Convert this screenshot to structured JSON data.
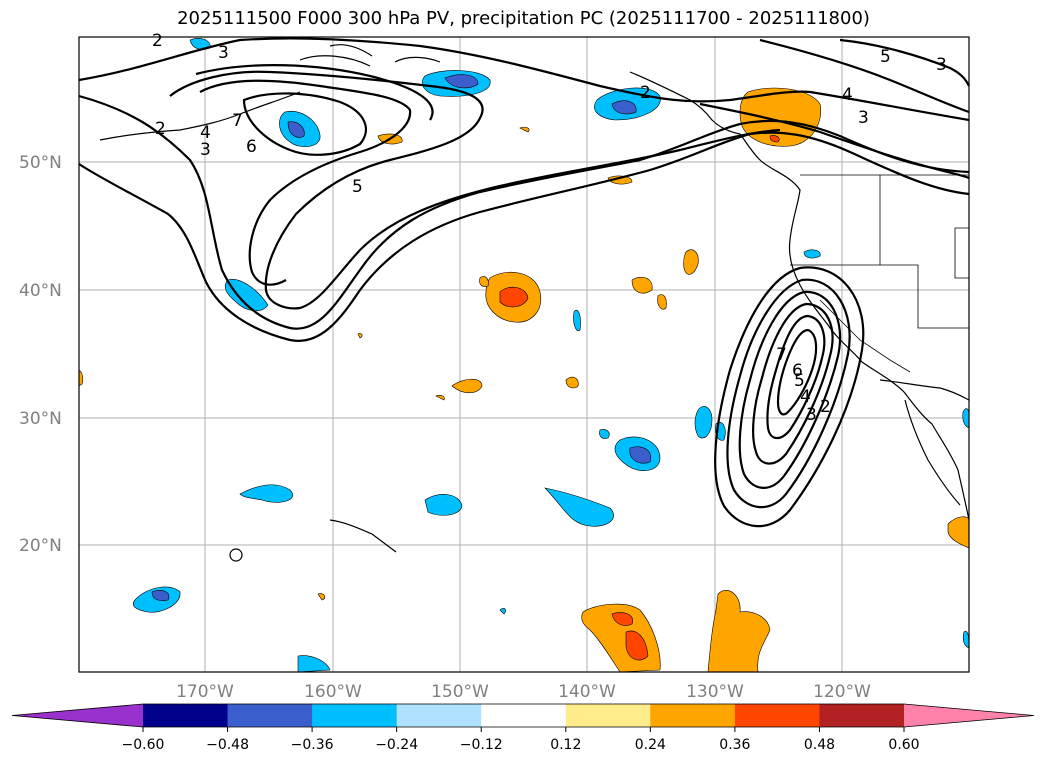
{
  "title": "2025111500 F000 300 hPa PV, precipitation PC (2025111700 - 2025111800)",
  "map": {
    "lat_labels": [
      "50°N",
      "40°N",
      "30°N",
      "20°N"
    ],
    "lon_labels": [
      "170°W",
      "160°W",
      "150°W",
      "140°W",
      "130°W",
      "120°W"
    ],
    "pv_contour_labels": [
      "2",
      "3",
      "3",
      "4",
      "5",
      "6",
      "7",
      "2",
      "3",
      "4",
      "5",
      "2",
      "3",
      "4",
      "5",
      "6",
      "7",
      "2",
      "3"
    ]
  },
  "colorbar": {
    "ticks": [
      "−0.60",
      "−0.48",
      "−0.36",
      "−0.24",
      "−0.12",
      "0.12",
      "0.24",
      "0.36",
      "0.48",
      "0.60"
    ],
    "colors": [
      "#9932cc",
      "#00008b",
      "#3a5fcd",
      "#00bfff",
      "#b0e2ff",
      "#ffffff",
      "#ffec8b",
      "#ffa500",
      "#ff4500",
      "#b22222",
      "#ff82ab"
    ]
  }
}
